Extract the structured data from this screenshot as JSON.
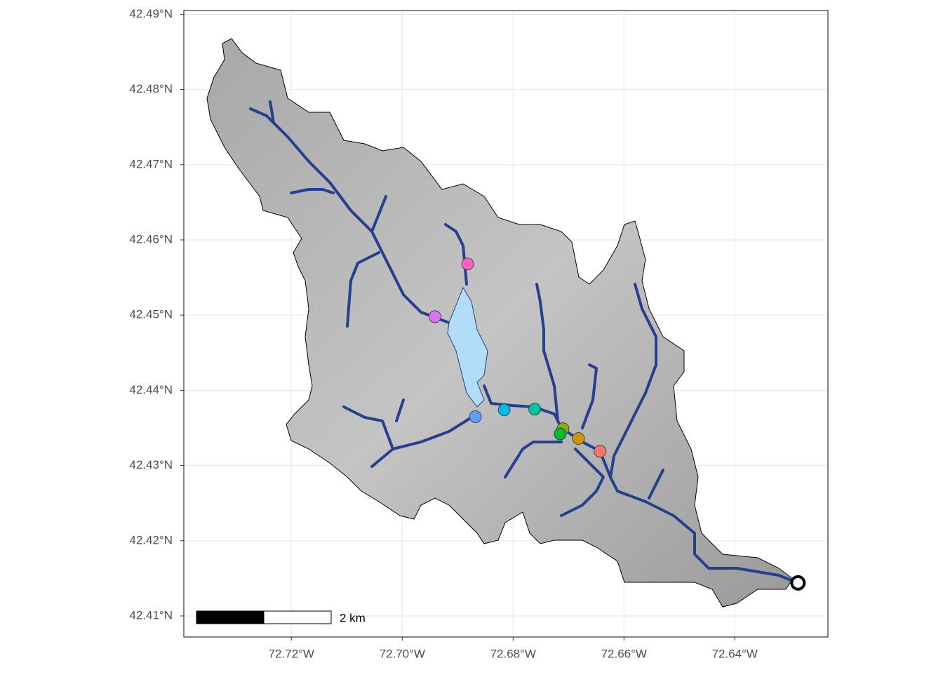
{
  "chart_data": {
    "type": "scatter",
    "xlim": [
      -72.7394,
      -72.6232
    ],
    "ylim": [
      42.4072,
      42.4905
    ],
    "xticks": [
      {
        "value": -72.72,
        "label": "72.72°W"
      },
      {
        "value": -72.7,
        "label": "72.70°W"
      },
      {
        "value": -72.68,
        "label": "72.68°W"
      },
      {
        "value": -72.66,
        "label": "72.66°W"
      },
      {
        "value": -72.64,
        "label": "72.64°W"
      }
    ],
    "yticks": [
      {
        "value": 42.41,
        "label": "42.41°N"
      },
      {
        "value": 42.42,
        "label": "42.42°N"
      },
      {
        "value": 42.43,
        "label": "42.43°N"
      },
      {
        "value": 42.44,
        "label": "42.44°N"
      },
      {
        "value": 42.45,
        "label": "42.45°N"
      },
      {
        "value": 42.46,
        "label": "42.46°N"
      },
      {
        "value": 42.47,
        "label": "42.47°N"
      },
      {
        "value": 42.48,
        "label": "42.48°N"
      },
      {
        "value": 42.49,
        "label": "42.49°N"
      }
    ],
    "grid": true,
    "x": [
      -72.6643,
      -72.6682,
      -72.671,
      -72.6715,
      -72.6761,
      -72.6816,
      -72.6868,
      -72.6941,
      -72.6882
    ],
    "y": [
      42.4319,
      42.4336,
      42.4349,
      42.4342,
      42.4375,
      42.4374,
      42.4365,
      42.4498,
      42.4568
    ],
    "colors": [
      "#F8766D",
      "#D39200",
      "#93AA00",
      "#00BA38",
      "#00C19F",
      "#00B9E3",
      "#619CFF",
      "#DB72FB",
      "#FF61C3"
    ],
    "outlet": {
      "x": -72.6286,
      "y": 42.4144
    },
    "scale_bar_label": "2 km"
  }
}
